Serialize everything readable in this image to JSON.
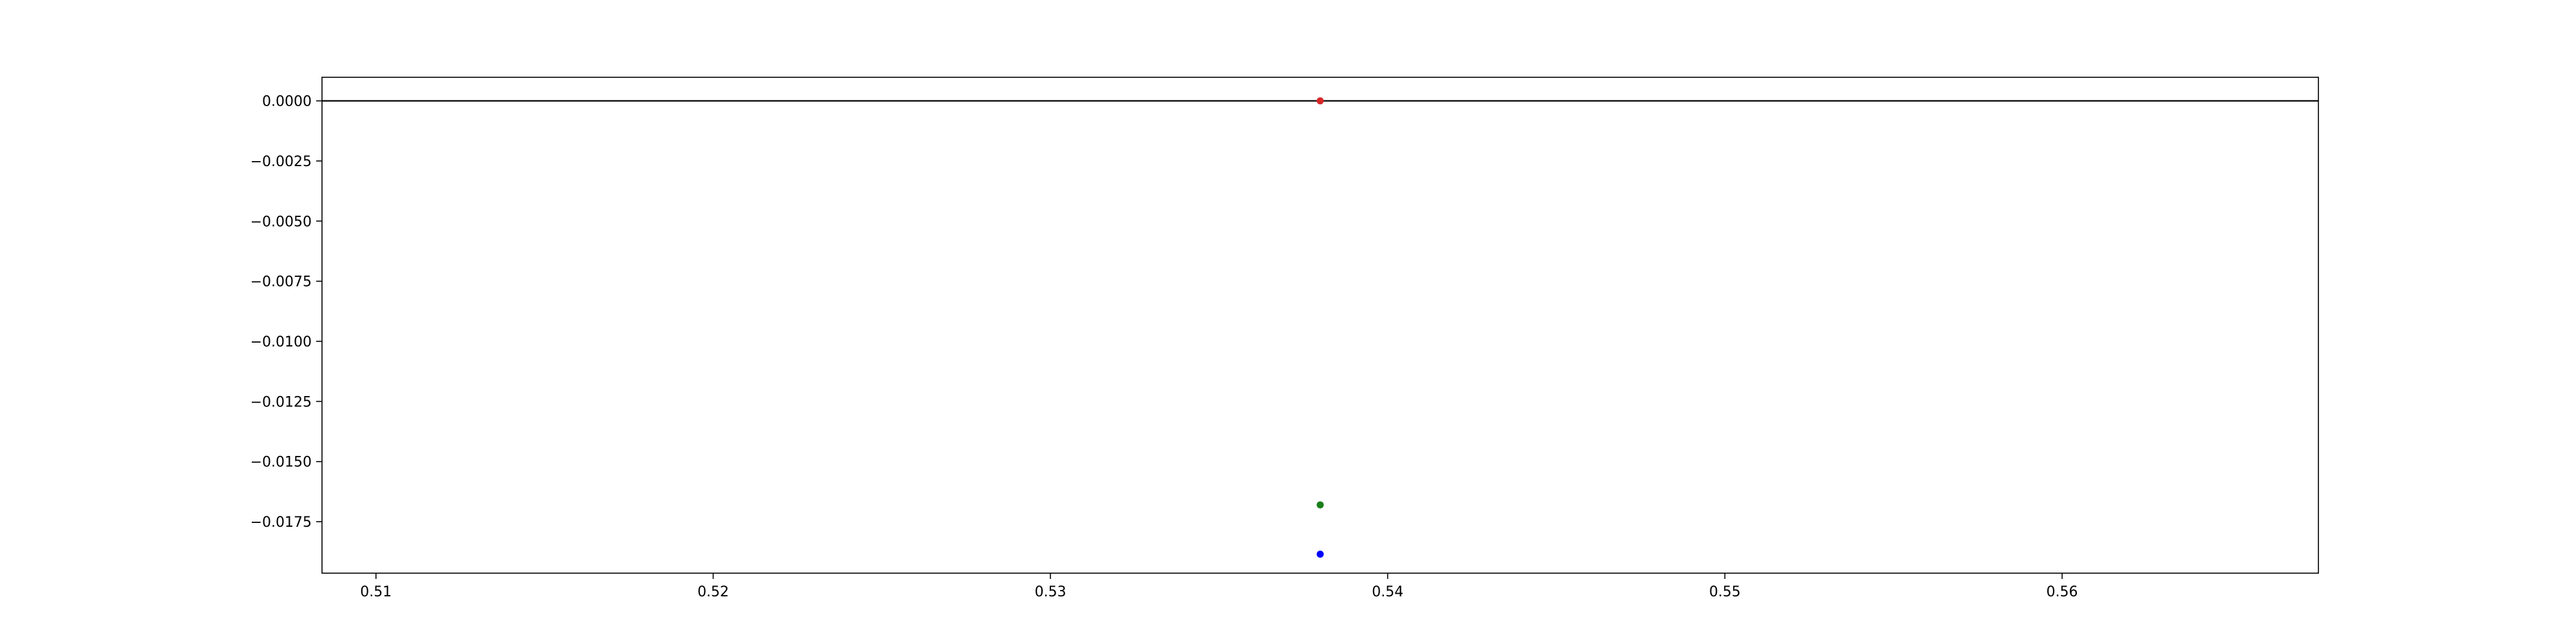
{
  "chart_data": {
    "type": "scatter",
    "title": "",
    "xlabel": "",
    "ylabel": "",
    "xlim": [
      0.5084,
      0.5676
    ],
    "ylim": [
      -0.01964,
      0.00098
    ],
    "x_ticks": [
      0.51,
      0.52,
      0.53,
      0.54,
      0.55,
      0.56
    ],
    "x_tick_labels": [
      "0.51",
      "0.52",
      "0.53",
      "0.54",
      "0.55",
      "0.56"
    ],
    "y_ticks": [
      0.0,
      -0.0025,
      -0.005,
      -0.0075,
      -0.01,
      -0.0125,
      -0.015,
      -0.0175
    ],
    "y_tick_labels": [
      "0.0000",
      "−0.0025",
      "−0.0050",
      "−0.0075",
      "−0.0100",
      "−0.0125",
      "−0.0150",
      "−0.0175"
    ],
    "hline": {
      "y": 0.0,
      "color": "#000000"
    },
    "grid": false,
    "legend": "none",
    "points": [
      {
        "x": 0.538,
        "y": 0.0,
        "color": "#d62728"
      },
      {
        "x": 0.538,
        "y": -0.0168,
        "color": "#1a7f1a"
      },
      {
        "x": 0.538,
        "y": -0.01885,
        "color": "#0000ff"
      }
    ]
  }
}
